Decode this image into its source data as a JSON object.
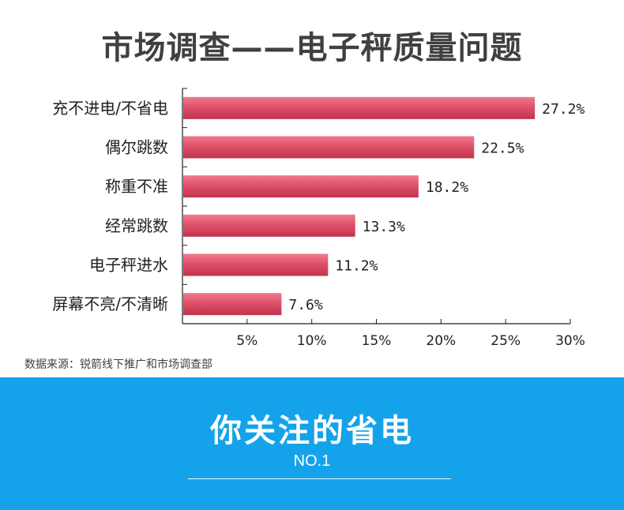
{
  "page": {
    "title": "市场调查——电子秤质量问题"
  },
  "chart_data": {
    "type": "bar",
    "orientation": "horizontal",
    "categories": [
      "充不进电/不省电",
      "偶尔跳数",
      "称重不准",
      "经常跳数",
      "电子秤进水",
      "屏幕不亮/不清晰"
    ],
    "values": [
      27.2,
      22.5,
      18.2,
      13.3,
      11.2,
      7.6
    ],
    "value_labels": [
      "27.2%",
      "22.5%",
      "18.2%",
      "13.3%",
      "11.2%",
      "7.6%"
    ],
    "x_ticks": [
      5,
      10,
      15,
      20,
      25,
      30
    ],
    "x_tick_labels": [
      "5%",
      "10%",
      "15%",
      "20%",
      "25%",
      "30%"
    ],
    "xlim": [
      0,
      30
    ],
    "bar_color": "#e0516a",
    "bar_color_dark": "#c0344e",
    "grid": false,
    "legend": "none"
  },
  "source": {
    "text": "数据来源：锐箭线下推广和市场调查部"
  },
  "banner": {
    "title": "你关注的省电",
    "subtitle": "NO.1",
    "color": "#14a3eb"
  }
}
